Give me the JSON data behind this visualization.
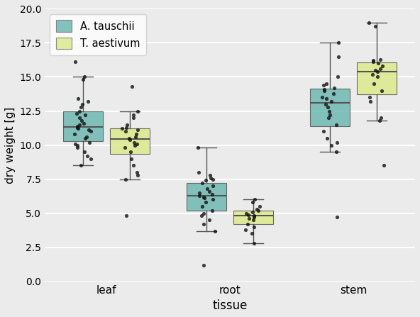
{
  "title": "",
  "xlabel": "tissue",
  "ylabel": "dry weight [g]",
  "ylim": [
    0.0,
    20.0
  ],
  "yticks": [
    0.0,
    2.5,
    5.0,
    7.5,
    10.0,
    12.5,
    15.0,
    17.5,
    20.0
  ],
  "categories": [
    "leaf",
    "root",
    "stem"
  ],
  "species": [
    "A. tauschii",
    "T. aestivum"
  ],
  "colors": [
    "#6db8b2",
    "#dde98c"
  ],
  "box_width": 0.32,
  "jitter_seed": 42,
  "data": {
    "A. tauschii": {
      "leaf": [
        8.5,
        9.0,
        9.2,
        9.5,
        9.8,
        10.0,
        10.1,
        10.2,
        10.5,
        10.6,
        10.8,
        11.0,
        11.1,
        11.2,
        11.3,
        11.4,
        11.5,
        11.6,
        11.8,
        12.0,
        12.2,
        12.3,
        12.5,
        12.8,
        13.0,
        13.2,
        13.4,
        14.8,
        15.0,
        16.1
      ],
      "root": [
        3.7,
        4.2,
        4.5,
        4.8,
        5.0,
        5.2,
        5.5,
        5.8,
        6.0,
        6.1,
        6.2,
        6.3,
        6.4,
        6.5,
        6.6,
        6.8,
        7.0,
        7.2,
        7.4,
        7.5,
        7.6,
        7.8,
        8.0,
        9.8,
        1.2
      ],
      "stem": [
        4.7,
        9.5,
        10.0,
        10.2,
        10.5,
        11.0,
        11.5,
        12.0,
        12.2,
        12.5,
        12.8,
        13.0,
        13.2,
        13.4,
        13.5,
        13.8,
        14.0,
        14.1,
        14.2,
        14.4,
        14.5,
        15.0,
        16.5,
        17.5
      ]
    },
    "T. aestivum": {
      "leaf": [
        4.8,
        7.5,
        7.8,
        8.0,
        8.5,
        9.0,
        9.5,
        9.8,
        10.0,
        10.1,
        10.2,
        10.4,
        10.5,
        10.6,
        10.8,
        11.0,
        11.1,
        11.2,
        11.3,
        11.5,
        12.0,
        12.2,
        12.5,
        14.3
      ],
      "root": [
        2.8,
        3.5,
        3.8,
        4.0,
        4.2,
        4.5,
        4.6,
        4.7,
        4.8,
        4.9,
        5.0,
        5.1,
        5.2,
        5.3,
        5.5,
        5.8,
        6.0
      ],
      "stem": [
        8.5,
        11.8,
        12.0,
        13.2,
        13.5,
        14.0,
        14.5,
        15.0,
        15.2,
        15.4,
        15.5,
        15.6,
        15.8,
        16.0,
        16.1,
        16.2,
        16.3,
        18.7,
        19.0
      ]
    }
  },
  "background_color": "#ebebeb",
  "grid_color": "#ffffff",
  "legend_facecolor": "#ffffff",
  "legend_loc": "upper left",
  "jitter_amount": 0.07,
  "dot_size": 14,
  "dot_color": "#111111",
  "dot_alpha": 0.8,
  "offsets": [
    -0.19,
    0.19
  ]
}
